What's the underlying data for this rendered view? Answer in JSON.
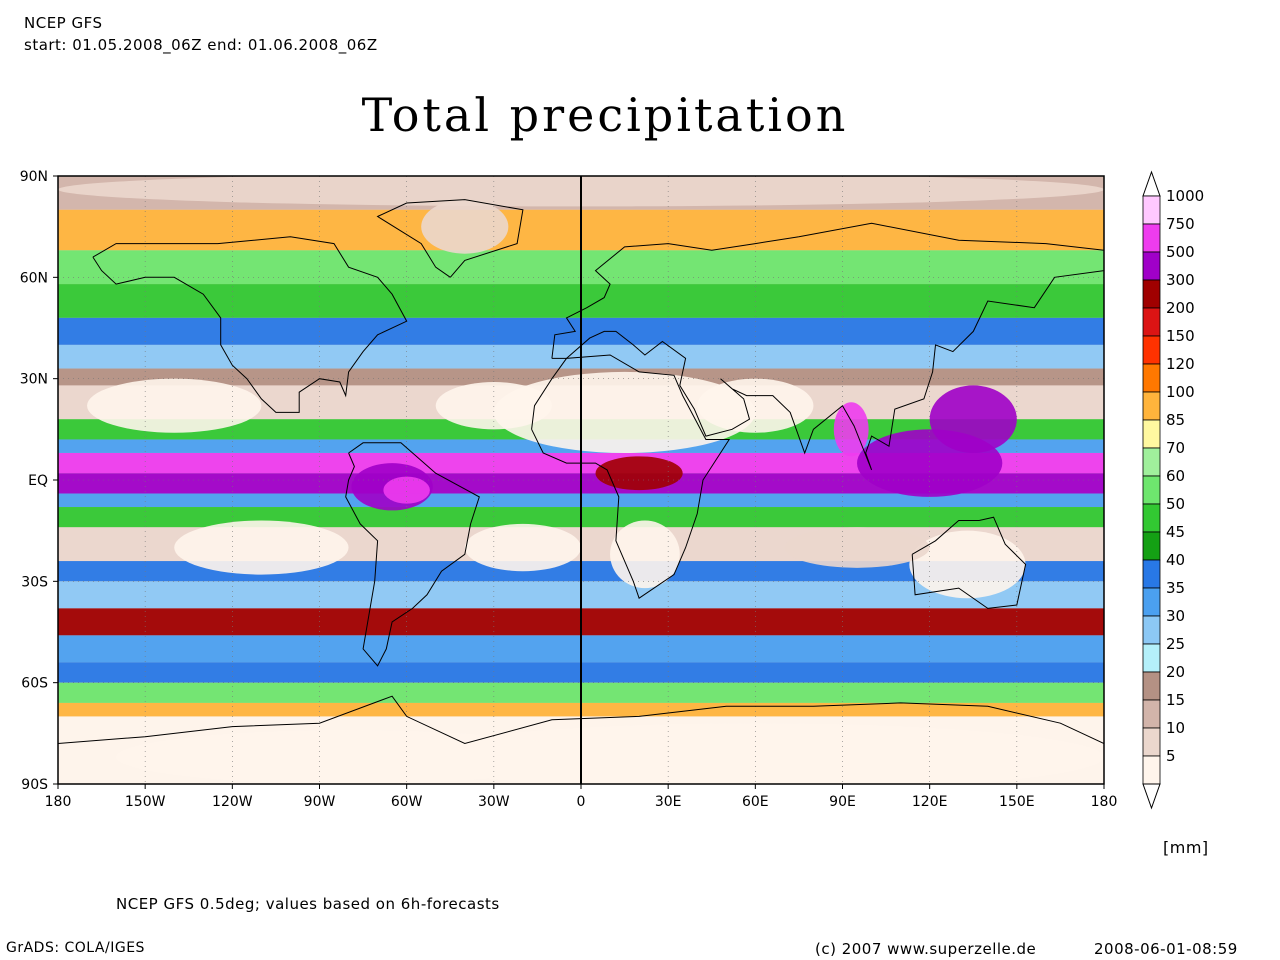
{
  "header": {
    "model": "NCEP GFS",
    "period": "start: 01.05.2008_06Z end: 01.06.2008_06Z"
  },
  "title": "Total precipitation",
  "map": {
    "lat_ticks": [
      "90N",
      "60N",
      "30N",
      "EQ",
      "30S",
      "60S",
      "90S"
    ],
    "lon_ticks": [
      "180",
      "150W",
      "120W",
      "90W",
      "60W",
      "30W",
      "0",
      "30E",
      "60E",
      "90E",
      "120E",
      "150E",
      "180"
    ],
    "grid": true
  },
  "colorbar": {
    "units": "[mm]",
    "levels": [
      {
        "label": "1000",
        "color": "#ffc8ff"
      },
      {
        "label": "750",
        "color": "#ee3cee"
      },
      {
        "label": "500",
        "color": "#a000c8"
      },
      {
        "label": "300",
        "color": "#a00000"
      },
      {
        "label": "200",
        "color": "#dc1414"
      },
      {
        "label": "150",
        "color": "#ff3200"
      },
      {
        "label": "120",
        "color": "#ff7800"
      },
      {
        "label": "100",
        "color": "#ffb43c"
      },
      {
        "label": "85",
        "color": "#fff8a0"
      },
      {
        "label": "70",
        "color": "#a0f09c"
      },
      {
        "label": "60",
        "color": "#6ee66e"
      },
      {
        "label": "50",
        "color": "#32c832"
      },
      {
        "label": "45",
        "color": "#14a014"
      },
      {
        "label": "40",
        "color": "#2878e6"
      },
      {
        "label": "35",
        "color": "#4ba0f0"
      },
      {
        "label": "30",
        "color": "#8cc8f5"
      },
      {
        "label": "25",
        "color": "#b4f0fa"
      },
      {
        "label": "20",
        "color": "#b49184"
      },
      {
        "label": "15",
        "color": "#d2b4aa"
      },
      {
        "label": "10",
        "color": "#ebd7cd"
      },
      {
        "label": "5",
        "color": "#fff5ec"
      }
    ]
  },
  "footer": {
    "note": "NCEP GFS 0.5deg; values based on 6h-forecasts",
    "grads": "GrADS: COLA/IGES",
    "copyright": "(c) 2007 www.superzelle.de",
    "timestamp": "2008-06-01-08:59"
  }
}
